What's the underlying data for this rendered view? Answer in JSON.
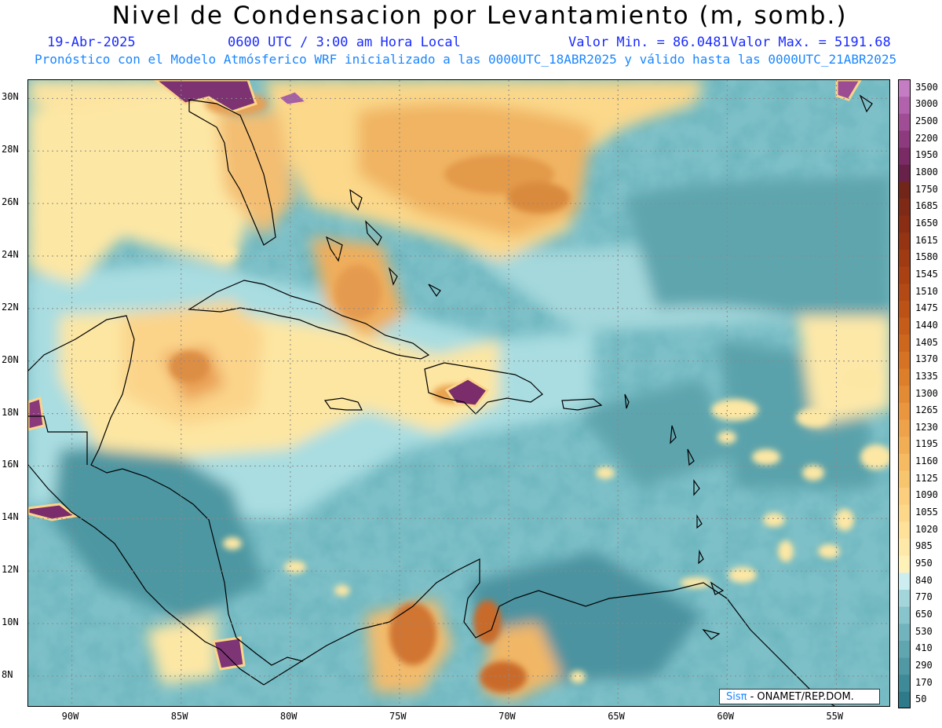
{
  "header": {
    "title": "Nivel de Condensacion por Levantamiento (m, somb.)",
    "date": "19-Abr-2025",
    "time": "0600 UTC / 3:00 am Hora Local",
    "min_label": "Valor Min. = 86.0481",
    "max_label": "Valor Max. = 5191.68",
    "forecast_note": "Pronóstico con el Modelo Atmósferico WRF inicializado a las 0000UTC_18ABR2025 y válido hasta las  0000UTC_21ABR2025"
  },
  "map": {
    "lon_range": [
      -92,
      -52.5
    ],
    "lat_range": [
      6.8,
      30.7
    ],
    "lat_ticks": [
      "8N",
      "10N",
      "12N",
      "14N",
      "16N",
      "18N",
      "20N",
      "22N",
      "24N",
      "26N",
      "28N",
      "30N"
    ],
    "lon_ticks": [
      "90W",
      "85W",
      "80W",
      "75W",
      "70W",
      "65W",
      "60W",
      "55W"
    ],
    "grid": true
  },
  "colorbar": {
    "labels": [
      "50",
      "170",
      "290",
      "410",
      "530",
      "650",
      "770",
      "840",
      "950",
      "985",
      "1020",
      "1055",
      "1090",
      "1125",
      "1160",
      "1195",
      "1230",
      "1265",
      "1300",
      "1335",
      "1370",
      "1405",
      "1440",
      "1475",
      "1510",
      "1545",
      "1580",
      "1615",
      "1650",
      "1685",
      "1750",
      "1800",
      "1950",
      "2200",
      "2500",
      "3000",
      "3500"
    ],
    "colors": [
      "#2e7a8a",
      "#3f8a98",
      "#4f98a4",
      "#60a6b0",
      "#72b4bd",
      "#88c4cb",
      "#a2d6db",
      "#cdeef0",
      "#fff2b8",
      "#ffe9a8",
      "#ffe19a",
      "#fdd88b",
      "#fbcf7d",
      "#f8c56f",
      "#f5ba62",
      "#f2ae55",
      "#eea249",
      "#e9963e",
      "#e38a34",
      "#dd7e2b",
      "#d67224",
      "#ce671e",
      "#c65c1a",
      "#bd5216",
      "#b34914",
      "#a94113",
      "#9f3a13",
      "#943413",
      "#892e14",
      "#7e2a16",
      "#722519",
      "#68224a",
      "#7a2b66",
      "#8d3a7e",
      "#a04d95",
      "#b262ac",
      "#c47cc2"
    ]
  },
  "credit": {
    "brand": "Sisπ",
    "text": " - ONAMET/REP.DOM."
  }
}
